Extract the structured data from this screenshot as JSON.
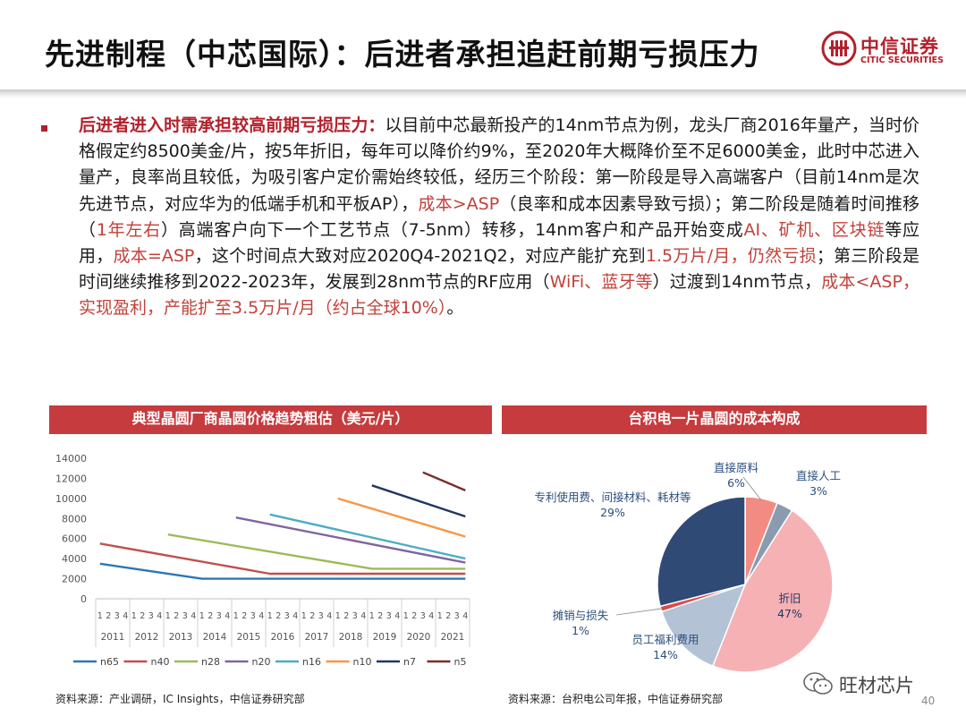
{
  "header": {
    "title": "先进制程（中芯国际）：后进者承担追赶前期亏损压力",
    "logo_cn": "中信证券",
    "logo_en": "CITIC SECURITIES"
  },
  "bullet": {
    "lead": "后进者进入时需承担较高前期亏损压力：",
    "p1": "以目前中芯最新投产的14nm节点为例，龙头厂商2016年量产，当时价格假定约8500美金/片，按5年折旧，每年可以降价约9%，至2020年大概降价至不足6000美金，此时中芯进入量产，良率尚且较低，为吸引客户定价需始终较低，经历三个阶段：第一阶段是导入高端客户（目前14nm是次先进节点，对应华为的低端手机和平板AP），",
    "h1": "成本>ASP",
    "p2": "（良率和成本因素导致亏损）；第二阶段是随着时间推移（",
    "h2": "1年左右",
    "p3": "）高端客户向下一个工艺节点（7-5nm）转移，14nm客户和产品开始变成",
    "h3": "AI、矿机、区块链",
    "p4": "等应用，",
    "h4": "成本=ASP",
    "p5": "，这个时间点大致对应2020Q4-2021Q2，对应产能扩充到",
    "h5": "1.5万片/月，仍然亏损",
    "p6": "；第三阶段是时间继续推移到2022-2023年，发展到28nm节点的RF应用（",
    "h6": "WiFi、蓝牙等",
    "p7": "）过渡到14nm节点，",
    "h7": "成本<ASP，实现盈利，产能扩至3.5万片/月（约占全球10%）",
    "p8": "。"
  },
  "left_panel": {
    "title": "典型晶圆厂商晶圆价格趋势粗估（美元/片）",
    "source": "资料来源：产业调研，IC Insights，中信证券研究部"
  },
  "right_panel": {
    "title": "台积电一片晶圆的成本构成",
    "source": "资料来源：台积电公司年报，中信证券研究部"
  },
  "watermark": "旺材芯片",
  "page_number": "40",
  "chart_data": [
    {
      "type": "line",
      "title": "典型晶圆厂商晶圆价格趋势粗估（美元/片）",
      "ylim": [
        0,
        14000
      ],
      "yticks": [
        0,
        2000,
        4000,
        6000,
        8000,
        10000,
        12000,
        14000
      ],
      "quarter_labels": [
        "1",
        "2",
        "3",
        "4"
      ],
      "years": [
        "2011",
        "2012",
        "2013",
        "2014",
        "2015",
        "2016",
        "2017",
        "2018",
        "2019",
        "2020",
        "2021"
      ],
      "legend_position": "bottom",
      "grid": false,
      "series": [
        {
          "name": "n65",
          "color": "#2e75b6",
          "points": [
            [
              "2011Q1",
              3500
            ],
            [
              "2014Q1",
              2000
            ],
            [
              "2021Q4",
              2000
            ]
          ]
        },
        {
          "name": "n40",
          "color": "#c0504d",
          "points": [
            [
              "2011Q1",
              5500
            ],
            [
              "2016Q1",
              2500
            ],
            [
              "2021Q4",
              2500
            ]
          ]
        },
        {
          "name": "n28",
          "color": "#9bbb59",
          "points": [
            [
              "2013Q1",
              6400
            ],
            [
              "2019Q1",
              3000
            ],
            [
              "2021Q4",
              3000
            ]
          ]
        },
        {
          "name": "n20",
          "color": "#8064a2",
          "points": [
            [
              "2015Q1",
              8100
            ],
            [
              "2021Q4",
              3600
            ]
          ]
        },
        {
          "name": "n16",
          "color": "#4bacc6",
          "points": [
            [
              "2016Q1",
              8400
            ],
            [
              "2021Q4",
              4000
            ]
          ]
        },
        {
          "name": "n10",
          "color": "#f79646",
          "points": [
            [
              "2018Q1",
              10000
            ],
            [
              "2021Q4",
              6200
            ]
          ]
        },
        {
          "name": "n7",
          "color": "#1f3864",
          "points": [
            [
              "2019Q1",
              11300
            ],
            [
              "2021Q4",
              8200
            ]
          ]
        },
        {
          "name": "n5",
          "color": "#7b2c2c",
          "points": [
            [
              "2020Q3",
              12600
            ],
            [
              "2021Q4",
              10800
            ]
          ]
        }
      ]
    },
    {
      "type": "pie",
      "title": "台积电一片晶圆的成本构成",
      "slices": [
        {
          "label": "直接原料",
          "value": 6,
          "pct": "6%",
          "color": "#f28b82"
        },
        {
          "label": "直接人工",
          "value": 3,
          "pct": "3%",
          "color": "#8a9bb0"
        },
        {
          "label": "折旧",
          "value": 47,
          "pct": "47%",
          "color": "#f6b1b4"
        },
        {
          "label": "员工福利费用",
          "value": 14,
          "pct": "14%",
          "color": "#b4c2d6"
        },
        {
          "label": "摊销与损失",
          "value": 1,
          "pct": "1%",
          "color": "#e04848"
        },
        {
          "label": "专利使用费、间接材料、耗材等",
          "value": 29,
          "pct": "29%",
          "color": "#2f4a75"
        }
      ]
    }
  ]
}
